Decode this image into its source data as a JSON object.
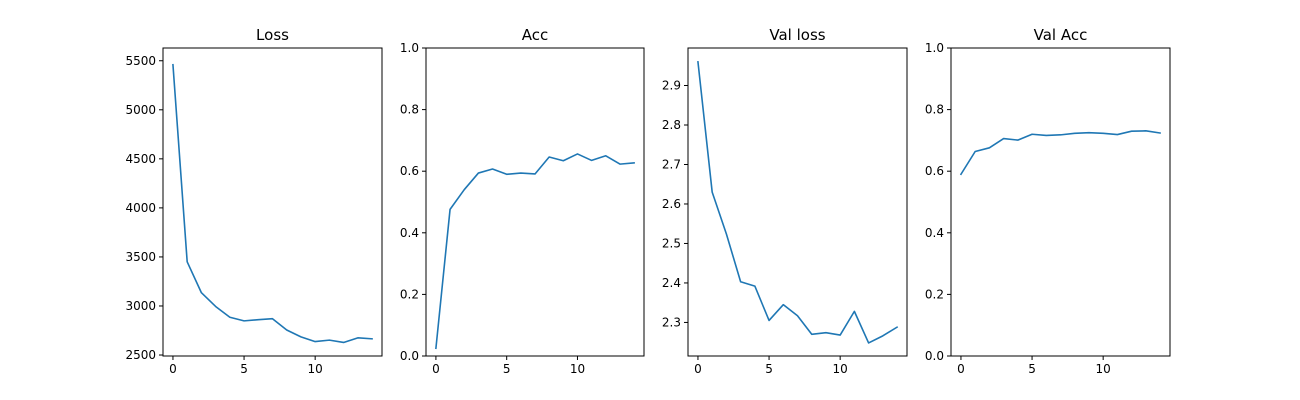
{
  "colors": {
    "series": "#1f77b4"
  },
  "chart_data": [
    {
      "type": "line",
      "title": "Loss",
      "xlabel": "",
      "ylabel": "",
      "xlim": [
        -0.7,
        14.7
      ],
      "ylim": [
        2490,
        5630
      ],
      "xticks": [
        0,
        5,
        10
      ],
      "yticks": [
        2500,
        3000,
        3500,
        4000,
        4500,
        5000,
        5500
      ],
      "grid": false,
      "x": [
        0,
        1,
        2,
        3,
        4,
        5,
        6,
        7,
        8,
        9,
        10,
        11,
        12,
        13,
        14
      ],
      "series": [
        {
          "values": [
            5460,
            3450,
            3135,
            2995,
            2885,
            2848,
            2860,
            2870,
            2755,
            2685,
            2637,
            2652,
            2628,
            2675,
            2665
          ]
        }
      ]
    },
    {
      "type": "line",
      "title": "Acc",
      "xlabel": "",
      "ylabel": "",
      "xlim": [
        -0.7,
        14.7
      ],
      "ylim": [
        0.0,
        1.0
      ],
      "xticks": [
        0,
        5,
        10
      ],
      "yticks": [
        0.0,
        0.2,
        0.4,
        0.6,
        0.8,
        1.0
      ],
      "grid": false,
      "x": [
        0,
        1,
        2,
        3,
        4,
        5,
        6,
        7,
        8,
        9,
        10,
        11,
        12,
        13,
        14
      ],
      "series": [
        {
          "values": [
            0.025,
            0.476,
            0.54,
            0.594,
            0.607,
            0.59,
            0.594,
            0.591,
            0.646,
            0.634,
            0.656,
            0.635,
            0.65,
            0.623,
            0.627
          ]
        }
      ]
    },
    {
      "type": "line",
      "title": "Val loss",
      "xlabel": "",
      "ylabel": "",
      "xlim": [
        -0.7,
        14.7
      ],
      "ylim": [
        2.215,
        2.995
      ],
      "xticks": [
        0,
        5,
        10
      ],
      "yticks": [
        2.3,
        2.4,
        2.5,
        2.6,
        2.7,
        2.8,
        2.9
      ],
      "grid": false,
      "x": [
        0,
        1,
        2,
        3,
        4,
        5,
        6,
        7,
        8,
        9,
        10,
        11,
        12,
        13,
        14
      ],
      "series": [
        {
          "values": [
            2.96,
            2.63,
            2.524,
            2.403,
            2.392,
            2.305,
            2.345,
            2.317,
            2.27,
            2.274,
            2.268,
            2.328,
            2.248,
            2.266,
            2.288
          ]
        }
      ]
    },
    {
      "type": "line",
      "title": "Val Acc",
      "xlabel": "",
      "ylabel": "",
      "xlim": [
        -0.7,
        14.7
      ],
      "ylim": [
        0.0,
        1.0
      ],
      "xticks": [
        0,
        5,
        10
      ],
      "yticks": [
        0.0,
        0.2,
        0.4,
        0.6,
        0.8,
        1.0
      ],
      "grid": false,
      "x": [
        0,
        1,
        2,
        3,
        4,
        5,
        6,
        7,
        8,
        9,
        10,
        11,
        12,
        13,
        14
      ],
      "series": [
        {
          "values": [
            0.59,
            0.664,
            0.676,
            0.706,
            0.701,
            0.72,
            0.716,
            0.718,
            0.723,
            0.725,
            0.723,
            0.719,
            0.73,
            0.731,
            0.724
          ]
        }
      ]
    }
  ]
}
